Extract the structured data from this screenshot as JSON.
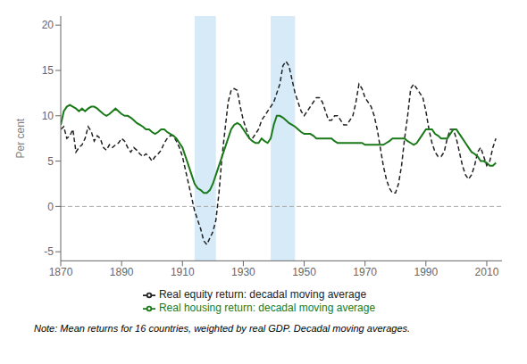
{
  "chart_data": {
    "type": "line",
    "title": "",
    "ylabel": "Per cent",
    "xlabel": "",
    "xlim": [
      1870,
      2015
    ],
    "ylim": [
      -6,
      21
    ],
    "yticks": [
      -5,
      0,
      5,
      10,
      15,
      20
    ],
    "xticks": [
      1870,
      1890,
      1910,
      1930,
      1950,
      1970,
      1990,
      2010
    ],
    "grid": false,
    "annotation": "Note: Mean returns for 16 countries, weighted by real GDP. Decadal moving averages.",
    "shaded_regions": [
      {
        "from": 1914,
        "to": 1921,
        "color": "#d6eaf8"
      },
      {
        "from": 1939,
        "to": 1947,
        "color": "#d6eaf8"
      }
    ],
    "zero_line": {
      "y": 0,
      "color": "#aaaaaa",
      "line_style": "dashed"
    },
    "x": [
      1870,
      1871,
      1872,
      1873,
      1874,
      1875,
      1876,
      1877,
      1878,
      1879,
      1880,
      1881,
      1882,
      1883,
      1884,
      1885,
      1886,
      1887,
      1888,
      1889,
      1890,
      1891,
      1892,
      1893,
      1894,
      1895,
      1896,
      1897,
      1898,
      1899,
      1900,
      1901,
      1902,
      1903,
      1904,
      1905,
      1906,
      1907,
      1908,
      1909,
      1910,
      1911,
      1912,
      1913,
      1914,
      1915,
      1916,
      1917,
      1918,
      1919,
      1920,
      1921,
      1922,
      1923,
      1924,
      1925,
      1926,
      1927,
      1928,
      1929,
      1930,
      1931,
      1932,
      1933,
      1934,
      1935,
      1936,
      1937,
      1938,
      1939,
      1940,
      1941,
      1942,
      1943,
      1944,
      1945,
      1946,
      1947,
      1948,
      1949,
      1950,
      1951,
      1952,
      1953,
      1954,
      1955,
      1956,
      1957,
      1958,
      1959,
      1960,
      1961,
      1962,
      1963,
      1964,
      1965,
      1966,
      1967,
      1968,
      1969,
      1970,
      1971,
      1972,
      1973,
      1974,
      1975,
      1976,
      1977,
      1978,
      1979,
      1980,
      1981,
      1982,
      1983,
      1984,
      1985,
      1986,
      1987,
      1988,
      1989,
      1990,
      1991,
      1992,
      1993,
      1994,
      1995,
      1996,
      1997,
      1998,
      1999,
      2000,
      2001,
      2002,
      2003,
      2004,
      2005,
      2006,
      2007,
      2008,
      2009,
      2010,
      2011,
      2012,
      2013
    ],
    "series": [
      {
        "name": "Real equity return: decadal moving average",
        "color": "#222222",
        "line_style": "dashed",
        "values": [
          8.5,
          8.8,
          7.5,
          7.8,
          8.5,
          6.0,
          6.5,
          6.8,
          7.5,
          8.8,
          8.3,
          7.2,
          7.8,
          7.5,
          6.5,
          6.2,
          6.8,
          6.5,
          6.8,
          7.0,
          7.5,
          7.2,
          6.5,
          6.0,
          6.5,
          6.2,
          5.8,
          5.5,
          5.8,
          5.5,
          5.0,
          5.5,
          5.8,
          6.2,
          7.0,
          7.5,
          7.8,
          7.8,
          7.2,
          6.5,
          5.5,
          4.0,
          2.5,
          1.0,
          -0.5,
          -1.5,
          -2.5,
          -3.8,
          -4.2,
          -3.5,
          -2.8,
          -1.5,
          1.5,
          5.5,
          8.5,
          11.5,
          12.8,
          13.0,
          12.8,
          11.0,
          9.5,
          8.5,
          7.5,
          7.5,
          8.0,
          8.5,
          9.5,
          10.0,
          10.5,
          11.0,
          11.5,
          12.5,
          13.5,
          15.5,
          16.0,
          15.5,
          14.0,
          12.5,
          11.5,
          10.5,
          10.0,
          10.5,
          11.0,
          11.5,
          12.0,
          12.0,
          11.5,
          10.5,
          9.5,
          9.5,
          10.0,
          10.0,
          9.5,
          9.0,
          9.0,
          9.5,
          10.0,
          11.5,
          13.5,
          13.0,
          12.0,
          11.5,
          11.0,
          10.0,
          8.5,
          6.5,
          4.5,
          3.0,
          2.0,
          1.5,
          1.5,
          2.5,
          4.5,
          7.5,
          10.0,
          13.0,
          13.5,
          13.0,
          12.5,
          12.0,
          10.5,
          8.5,
          7.0,
          6.0,
          5.5,
          5.5,
          6.0,
          7.5,
          8.5,
          8.5,
          7.5,
          6.0,
          4.5,
          3.5,
          3.0,
          3.5,
          4.5,
          6.0,
          6.5,
          5.5,
          4.5,
          5.0,
          6.5,
          7.5
        ]
      },
      {
        "name": "Real housing return: decadal moving average",
        "color": "#1a7a1a",
        "line_style": "solid",
        "values": [
          9.0,
          10.5,
          11.0,
          11.2,
          11.0,
          10.8,
          10.5,
          10.8,
          10.5,
          10.8,
          11.0,
          11.0,
          10.8,
          10.5,
          10.2,
          10.0,
          10.2,
          10.5,
          10.8,
          10.5,
          10.2,
          10.0,
          10.0,
          9.8,
          9.5,
          9.2,
          9.0,
          8.8,
          8.5,
          8.5,
          8.2,
          8.0,
          8.2,
          8.5,
          8.5,
          8.2,
          8.0,
          7.8,
          7.5,
          7.0,
          6.5,
          5.5,
          4.5,
          3.5,
          2.5,
          2.0,
          1.8,
          1.5,
          1.5,
          1.8,
          2.5,
          3.5,
          4.5,
          5.5,
          6.5,
          7.5,
          8.5,
          9.0,
          9.2,
          9.0,
          8.5,
          8.0,
          7.5,
          7.2,
          7.0,
          7.0,
          7.5,
          7.2,
          7.0,
          7.5,
          9.0,
          10.0,
          10.0,
          9.8,
          9.5,
          9.2,
          9.0,
          8.8,
          8.5,
          8.2,
          8.0,
          8.0,
          8.0,
          7.8,
          7.5,
          7.5,
          7.5,
          7.5,
          7.5,
          7.5,
          7.2,
          7.0,
          7.0,
          7.0,
          7.0,
          7.0,
          7.0,
          7.0,
          7.0,
          7.0,
          6.8,
          6.8,
          6.8,
          6.8,
          6.8,
          6.8,
          6.8,
          7.0,
          7.2,
          7.5,
          7.5,
          7.5,
          7.5,
          7.5,
          7.2,
          7.0,
          6.8,
          7.0,
          7.5,
          8.0,
          8.5,
          8.5,
          8.5,
          8.0,
          7.8,
          7.5,
          7.5,
          7.5,
          8.0,
          8.5,
          8.5,
          8.0,
          7.5,
          7.0,
          6.5,
          6.0,
          5.8,
          5.5,
          5.0,
          5.0,
          4.8,
          4.5,
          4.5,
          4.8
        ]
      }
    ]
  }
}
